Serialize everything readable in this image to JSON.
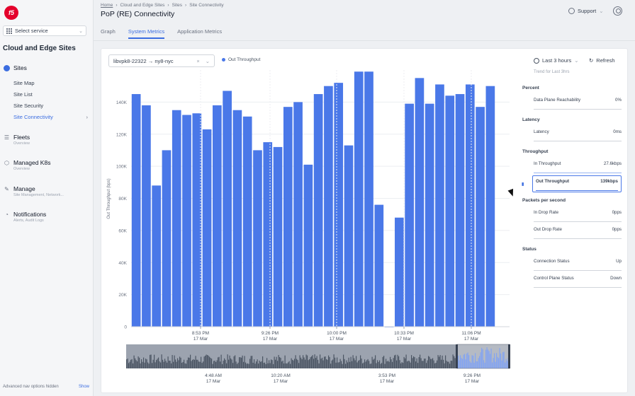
{
  "sidebar": {
    "logo": "f5",
    "service_select": "Select service",
    "workspace": "Cloud and Edge Sites",
    "sites": {
      "label": "Sites",
      "items": [
        {
          "label": "Site Map"
        },
        {
          "label": "Site List"
        },
        {
          "label": "Site Security"
        },
        {
          "label": "Site Connectivity"
        }
      ]
    },
    "groups": [
      {
        "label": "Fleets",
        "sub": "Overview"
      },
      {
        "label": "Managed K8s",
        "sub": "Overview"
      },
      {
        "label": "Manage",
        "sub": "Site Management, Network..."
      },
      {
        "label": "Notifications",
        "sub": "Alerts, Audit Logs"
      }
    ],
    "footer_text": "Advanced nav options hidden",
    "footer_link": "Show"
  },
  "header": {
    "breadcrumb": [
      "Home",
      "Cloud and Edge Sites",
      "Sites",
      "Site Connectivity"
    ],
    "title": "PoP (RE) Connectivity",
    "support": "Support"
  },
  "tabs": [
    {
      "label": "Graph",
      "active": false
    },
    {
      "label": "System Metrics",
      "active": true
    },
    {
      "label": "Application Metrics",
      "active": false
    }
  ],
  "toolbar": {
    "connection": "libvpk8-22322 → ny8-nyc",
    "legend": "Out Throughput",
    "time_range": "Last 3 hours",
    "refresh": "Refresh"
  },
  "metrics": {
    "trend_note": "Trend for Last 3hrs",
    "sections": [
      {
        "title": "Percent",
        "rows": [
          {
            "label": "Data Plane Reachability",
            "value": "0%"
          }
        ]
      },
      {
        "title": "Latency",
        "rows": [
          {
            "label": "Latency",
            "value": "0ms"
          }
        ]
      },
      {
        "title": "Throughput",
        "rows": [
          {
            "label": "In Throughput",
            "value": "27.6kbps"
          },
          {
            "label": "Out Throughput",
            "value": "139kbps",
            "selected": true
          }
        ]
      },
      {
        "title": "Packets per second",
        "rows": [
          {
            "label": "In Drop Rate",
            "value": "0pps"
          },
          {
            "label": "Out Drop Rate",
            "value": "0pps"
          }
        ]
      },
      {
        "title": "Status",
        "rows": [
          {
            "label": "Connection Status",
            "value": "Up"
          },
          {
            "label": "Control Plane Status",
            "value": "Down"
          }
        ]
      }
    ]
  },
  "colors": {
    "bar": "#4a78e8",
    "accent": "#3b6de0"
  },
  "chart_data": {
    "type": "bar",
    "ylabel": "Out Throughput (bps)",
    "ylim": [
      0,
      160000
    ],
    "yticks": [
      0,
      20000,
      40000,
      60000,
      80000,
      100000,
      120000,
      140000
    ],
    "ytick_labels": [
      "0",
      "20K",
      "40K",
      "60K",
      "80K",
      "100K",
      "120K",
      "140K"
    ],
    "xticks": [
      "8:53 PM\n17 Mar",
      "9:26 PM\n17 Mar",
      "10:00 PM\n17 Mar",
      "10:33 PM\n17 Mar",
      "11:06 PM\n17 Mar"
    ],
    "values": [
      145000,
      138000,
      88000,
      110000,
      135000,
      132000,
      133000,
      123000,
      138000,
      147000,
      135000,
      131000,
      110000,
      115000,
      112000,
      137000,
      140000,
      101000,
      145000,
      150000,
      152000,
      113000,
      159000,
      159000,
      76000,
      0,
      68000,
      139000,
      155000,
      139000,
      151000,
      144000,
      145000,
      151000,
      137000,
      150000
    ],
    "overview_ticks": [
      "4:48 AM\n17 Mar",
      "10:20 AM\n17 Mar",
      "3:53 PM\n17 Mar",
      "9:26 PM\n17 Mar"
    ]
  }
}
